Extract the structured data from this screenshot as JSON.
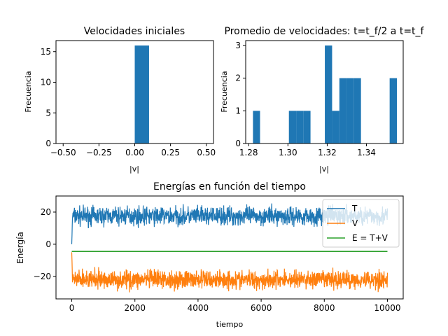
{
  "chart_data": [
    {
      "type": "bar",
      "title": "Velocidades iniciales",
      "xlabel": "|v|",
      "ylabel": "Frecuencia",
      "xlim": [
        -0.55,
        0.55
      ],
      "ylim": [
        0,
        16.8
      ],
      "xticks": [
        -0.5,
        -0.25,
        0.0,
        0.25,
        0.5
      ],
      "xtick_labels": [
        "−0.50",
        "−0.25",
        "0.00",
        "0.25",
        "0.50"
      ],
      "yticks": [
        0,
        5,
        10,
        15
      ],
      "yticks_labels": [
        "0",
        "5",
        "10",
        "15"
      ],
      "bins": [
        [
          0.0,
          0.1
        ]
      ],
      "values": [
        16
      ],
      "color": "#1f77b4"
    },
    {
      "type": "bar",
      "title": "Promedio de velocidades: t=t_f/2 a t=t_f",
      "xlabel": "|v|",
      "ylabel": "Frecuencia",
      "xlim": [
        1.2785,
        1.3587
      ],
      "ylim": [
        0,
        3.15
      ],
      "xticks": [
        1.28,
        1.3,
        1.32,
        1.34
      ],
      "xtick_labels": [
        "1.28",
        "1.30",
        "1.32",
        "1.34"
      ],
      "yticks": [
        0,
        1,
        2,
        3
      ],
      "yticks_labels": [
        "0",
        "1",
        "2",
        "3"
      ],
      "bins": [
        [
          1.2822,
          1.2858
        ],
        [
          1.2858,
          1.2895
        ],
        [
          1.2895,
          1.2932
        ],
        [
          1.2932,
          1.2968
        ],
        [
          1.2968,
          1.3005
        ],
        [
          1.3005,
          1.3042
        ],
        [
          1.3042,
          1.3078
        ],
        [
          1.3078,
          1.3115
        ],
        [
          1.3115,
          1.3152
        ],
        [
          1.3152,
          1.3188
        ],
        [
          1.3188,
          1.3225
        ],
        [
          1.3225,
          1.3262
        ],
        [
          1.3262,
          1.3298
        ],
        [
          1.3298,
          1.3335
        ],
        [
          1.3335,
          1.3372
        ],
        [
          1.3372,
          1.3408
        ],
        [
          1.3408,
          1.3445
        ],
        [
          1.3445,
          1.3482
        ],
        [
          1.3482,
          1.3518
        ],
        [
          1.3518,
          1.3555
        ]
      ],
      "values": [
        1,
        0,
        0,
        0,
        0,
        1,
        1,
        1,
        0,
        0,
        3,
        1,
        2,
        2,
        2,
        0,
        0,
        0,
        0,
        2
      ],
      "color": "#1f77b4"
    },
    {
      "type": "line",
      "title": "Energías en función del tiempo",
      "xlabel": "tiempo",
      "ylabel": "Energía",
      "xlim": [
        -500,
        10500
      ],
      "ylim": [
        -34,
        30
      ],
      "xticks": [
        0,
        2000,
        4000,
        6000,
        8000,
        10000
      ],
      "xtick_labels": [
        "0",
        "2000",
        "4000",
        "6000",
        "8000",
        "10000"
      ],
      "yticks": [
        -20,
        0,
        20
      ],
      "yticks_labels": [
        "−20",
        "0",
        "20"
      ],
      "legend": "upper right",
      "series": [
        {
          "name": "T",
          "color": "#1f77b4",
          "mean": 17.5,
          "amplitude": 7.5,
          "start": 0
        },
        {
          "name": "V",
          "color": "#ff7f0e",
          "mean": -22,
          "amplitude": 7.5,
          "start": -5
        },
        {
          "name": "E = T+V",
          "color": "#2ca02c",
          "mean": -4.5,
          "amplitude": 0,
          "start": -4.5
        }
      ],
      "x_range": [
        0,
        10000
      ]
    }
  ]
}
